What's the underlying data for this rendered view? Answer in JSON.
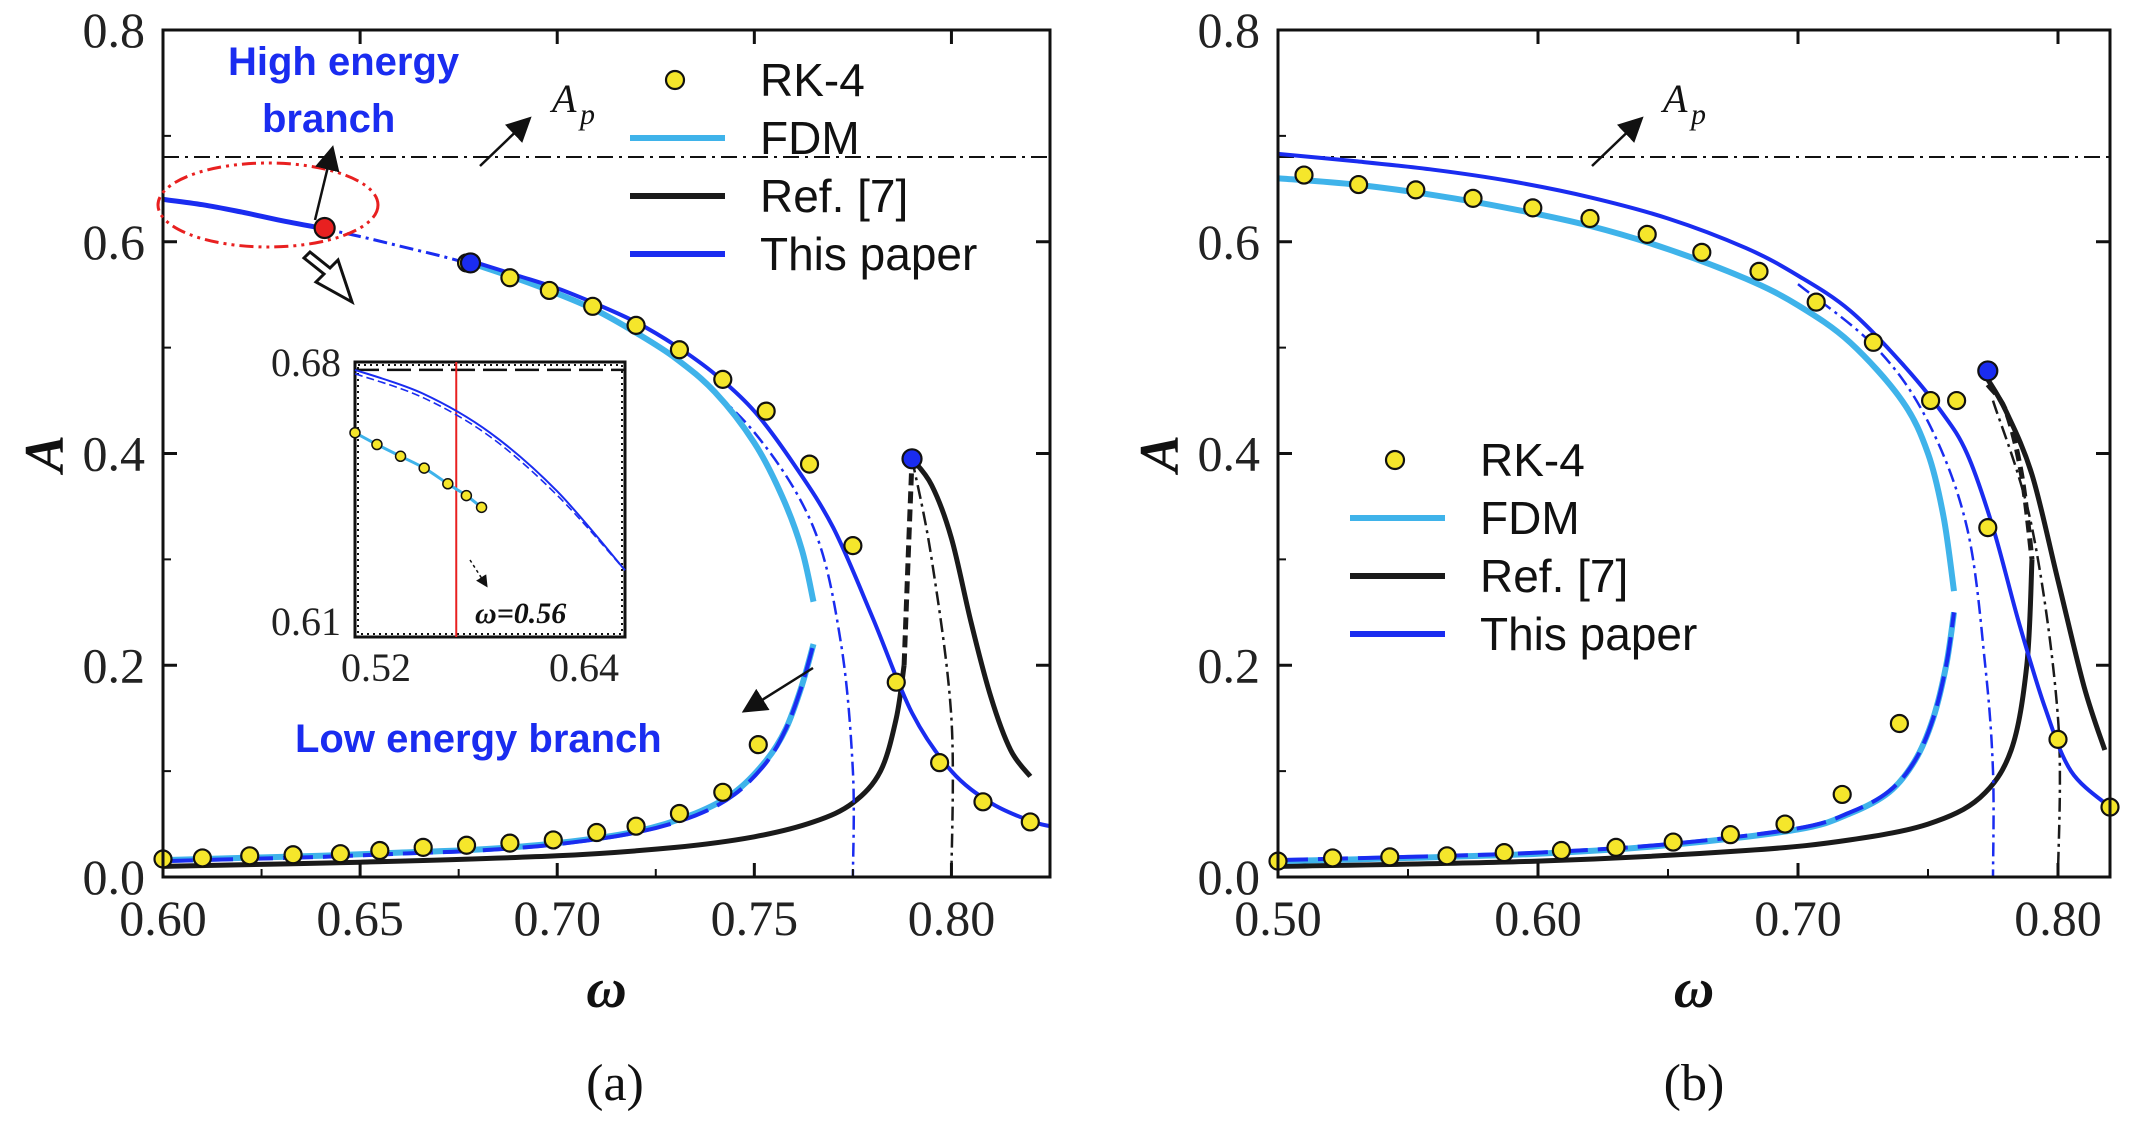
{
  "figure": {
    "captions": [
      "(a)",
      "(b)"
    ]
  },
  "colors": {
    "rk4_fill": "#f5e62b",
    "fdm": "#3fb3ea",
    "ref": "#1a1a1a",
    "this_paper": "#1a2cf0",
    "red_marker": "#e82020",
    "ellipse": "#e82020",
    "inset_vline": "#e82020"
  },
  "legend_labels": [
    "RK-4",
    "FDM",
    "Ref. [7]",
    "This paper"
  ],
  "annotations": {
    "high_energy_line1": "High energy",
    "high_energy_line2": "branch",
    "low_energy": "Low energy branch",
    "ap_main": "A",
    "ap_sub": "p",
    "inset_omega": "ω=0.56"
  },
  "chart_data": [
    {
      "id": "a",
      "type": "line",
      "xlabel": "ω",
      "ylabel": "A",
      "xlim": [
        0.6,
        0.825
      ],
      "ylim": [
        0.0,
        0.8
      ],
      "xticks": [
        0.6,
        0.65,
        0.7,
        0.75,
        0.8
      ],
      "xtick_labels": [
        "0.60",
        "0.65",
        "0.70",
        "0.75",
        "0.80"
      ],
      "yticks": [
        0.0,
        0.2,
        0.4,
        0.6,
        0.8
      ],
      "ytick_labels": [
        "0.0",
        "0.2",
        "0.4",
        "0.6",
        "0.8"
      ],
      "Ap": 0.68,
      "series": [
        {
          "name": "RK-4",
          "type": "scatter",
          "x": [
            0.6,
            0.61,
            0.622,
            0.633,
            0.645,
            0.655,
            0.666,
            0.677,
            0.688,
            0.699,
            0.71,
            0.72,
            0.731,
            0.742,
            0.751,
            0.677,
            0.688,
            0.698,
            0.709,
            0.72,
            0.731,
            0.742,
            0.753,
            0.764,
            0.775,
            0.786,
            0.797,
            0.808,
            0.82
          ],
          "y": [
            0.017,
            0.018,
            0.02,
            0.021,
            0.022,
            0.025,
            0.028,
            0.03,
            0.032,
            0.035,
            0.042,
            0.048,
            0.06,
            0.08,
            0.125,
            0.58,
            0.566,
            0.554,
            0.539,
            0.521,
            0.498,
            0.47,
            0.44,
            0.39,
            0.313,
            0.184,
            0.108,
            0.071,
            0.052
          ]
        },
        {
          "name": "FDM",
          "upper_x": [
            0.678,
            0.69,
            0.7,
            0.71,
            0.72,
            0.73,
            0.74,
            0.75,
            0.757,
            0.762,
            0.765
          ],
          "upper_y": [
            0.58,
            0.565,
            0.551,
            0.535,
            0.514,
            0.49,
            0.458,
            0.41,
            0.36,
            0.31,
            0.26
          ],
          "lower_x": [
            0.6,
            0.62,
            0.64,
            0.66,
            0.68,
            0.7,
            0.72,
            0.735,
            0.745,
            0.753,
            0.758,
            0.762,
            0.765
          ],
          "lower_y": [
            0.016,
            0.018,
            0.02,
            0.023,
            0.026,
            0.032,
            0.043,
            0.06,
            0.08,
            0.11,
            0.14,
            0.18,
            0.22
          ]
        },
        {
          "name": "Ref. [7]",
          "upper_x": [
            0.79,
            0.795,
            0.8,
            0.805,
            0.81,
            0.815,
            0.82
          ],
          "upper_y": [
            0.395,
            0.37,
            0.32,
            0.24,
            0.17,
            0.12,
            0.095
          ],
          "lower_x": [
            0.6,
            0.65,
            0.7,
            0.73,
            0.75,
            0.765,
            0.775,
            0.782,
            0.786,
            0.788
          ],
          "lower_y": [
            0.01,
            0.014,
            0.02,
            0.028,
            0.038,
            0.052,
            0.07,
            0.1,
            0.15,
            0.2
          ],
          "unstable_x": [
            0.788,
            0.789,
            0.79
          ],
          "unstable_y": [
            0.2,
            0.3,
            0.395
          ],
          "backbone_x": [
            0.79,
            0.795,
            0.8,
            0.8
          ],
          "backbone_y": [
            0.395,
            0.3,
            0.15,
            0.0
          ]
        },
        {
          "name": "This paper",
          "high_x": [
            0.6,
            0.61,
            0.62,
            0.63,
            0.64
          ],
          "high_y": [
            0.64,
            0.635,
            0.628,
            0.62,
            0.613
          ],
          "high_dash_x": [
            0.64,
            0.65,
            0.66,
            0.67,
            0.677
          ],
          "high_dash_y": [
            0.613,
            0.605,
            0.596,
            0.587,
            0.58
          ],
          "upper_x": [
            0.678,
            0.69,
            0.7,
            0.71,
            0.72,
            0.73,
            0.74,
            0.75,
            0.76,
            0.77,
            0.78,
            0.79,
            0.8,
            0.81,
            0.82,
            0.825
          ],
          "upper_y": [
            0.582,
            0.568,
            0.556,
            0.541,
            0.524,
            0.502,
            0.475,
            0.44,
            0.39,
            0.33,
            0.245,
            0.155,
            0.1,
            0.07,
            0.053,
            0.048
          ],
          "lower_x": [
            0.6,
            0.62,
            0.64,
            0.66,
            0.68,
            0.7,
            0.72,
            0.735,
            0.745,
            0.753,
            0.758,
            0.762,
            0.765
          ],
          "lower_y": [
            0.015,
            0.017,
            0.019,
            0.022,
            0.025,
            0.031,
            0.042,
            0.058,
            0.078,
            0.108,
            0.14,
            0.18,
            0.22
          ],
          "backbone_x": [
            0.73,
            0.75,
            0.765,
            0.772,
            0.775,
            0.775
          ],
          "backbone_y": [
            0.49,
            0.42,
            0.33,
            0.22,
            0.1,
            0.0
          ],
          "markers": [
            {
              "x": 0.678,
              "y": 0.58
            },
            {
              "x": 0.79,
              "y": 0.395
            }
          ],
          "red_marker": {
            "x": 0.641,
            "y": 0.613
          }
        }
      ],
      "inset": {
        "xlim": [
          0.5,
          0.66
        ],
        "ylim": [
          0.61,
          0.68
        ],
        "xtick_labels": [
          "0.52",
          "0.64"
        ],
        "xticks": [
          0.52,
          0.64
        ],
        "ytick_labels": [
          "0.68",
          "0.61"
        ],
        "yticks": [
          0.68,
          0.61
        ],
        "Ap": 0.678,
        "vline_x": 0.56,
        "rk4_x": [
          0.5,
          0.513,
          0.527,
          0.541,
          0.555,
          0.566,
          0.575
        ],
        "rk4_y": [
          0.662,
          0.659,
          0.656,
          0.653,
          0.649,
          0.646,
          0.643
        ],
        "blue_x": [
          0.5,
          0.54,
          0.58,
          0.62,
          0.66
        ],
        "blue_y": [
          0.678,
          0.672,
          0.662,
          0.647,
          0.627
        ],
        "blue_dash_x": [
          0.5,
          0.54,
          0.58,
          0.62,
          0.66
        ],
        "blue_dash_y": [
          0.677,
          0.671,
          0.661,
          0.646,
          0.627
        ]
      }
    },
    {
      "id": "b",
      "type": "line",
      "xlabel": "ω",
      "ylabel": "A",
      "xlim": [
        0.5,
        0.82
      ],
      "ylim": [
        0.0,
        0.8
      ],
      "xticks": [
        0.5,
        0.6,
        0.7,
        0.8
      ],
      "xtick_labels": [
        "0.50",
        "0.60",
        "0.70",
        "0.80"
      ],
      "yticks": [
        0.0,
        0.2,
        0.4,
        0.6,
        0.8
      ],
      "ytick_labels": [
        "0.0",
        "0.2",
        "0.4",
        "0.6",
        "0.8"
      ],
      "Ap": 0.68,
      "series": [
        {
          "name": "RK-4",
          "type": "scatter",
          "x": [
            0.5,
            0.521,
            0.543,
            0.565,
            0.587,
            0.609,
            0.63,
            0.652,
            0.674,
            0.695,
            0.717,
            0.739,
            0.761,
            0.773,
            0.8,
            0.82,
            0.51,
            0.531,
            0.553,
            0.575,
            0.598,
            0.62,
            0.642,
            0.663,
            0.685,
            0.707,
            0.729,
            0.751
          ],
          "y": [
            0.015,
            0.018,
            0.019,
            0.02,
            0.023,
            0.025,
            0.028,
            0.033,
            0.04,
            0.05,
            0.078,
            0.145,
            0.45,
            0.33,
            0.13,
            0.066,
            0.663,
            0.654,
            0.649,
            0.641,
            0.632,
            0.622,
            0.607,
            0.59,
            0.572,
            0.543,
            0.505,
            0.45
          ]
        },
        {
          "name": "FDM",
          "upper_x": [
            0.5,
            0.53,
            0.56,
            0.59,
            0.62,
            0.65,
            0.68,
            0.7,
            0.72,
            0.74,
            0.75,
            0.756,
            0.76
          ],
          "upper_y": [
            0.66,
            0.654,
            0.644,
            0.631,
            0.615,
            0.593,
            0.565,
            0.54,
            0.505,
            0.45,
            0.4,
            0.34,
            0.27
          ],
          "lower_x": [
            0.5,
            0.55,
            0.6,
            0.65,
            0.7,
            0.72,
            0.735,
            0.745,
            0.752,
            0.757,
            0.76
          ],
          "lower_y": [
            0.015,
            0.018,
            0.022,
            0.03,
            0.045,
            0.06,
            0.08,
            0.11,
            0.15,
            0.2,
            0.25
          ]
        },
        {
          "name": "Ref. [7]",
          "upper_x": [
            0.773,
            0.78,
            0.79,
            0.8,
            0.81,
            0.818
          ],
          "upper_y": [
            0.47,
            0.44,
            0.38,
            0.28,
            0.18,
            0.12
          ],
          "lower_x": [
            0.5,
            0.6,
            0.68,
            0.72,
            0.75,
            0.77,
            0.782,
            0.788,
            0.79
          ],
          "lower_y": [
            0.01,
            0.015,
            0.025,
            0.035,
            0.05,
            0.075,
            0.12,
            0.2,
            0.3
          ],
          "unstable_x": [
            0.773,
            0.78,
            0.786,
            0.79
          ],
          "unstable_y": [
            0.465,
            0.44,
            0.38,
            0.3
          ],
          "backbone_x": [
            0.775,
            0.79,
            0.8,
            0.8
          ],
          "backbone_y": [
            0.45,
            0.33,
            0.15,
            0.0
          ]
        },
        {
          "name": "This paper",
          "upper_x": [
            0.5,
            0.53,
            0.56,
            0.59,
            0.62,
            0.65,
            0.68,
            0.7,
            0.72,
            0.74,
            0.755,
            0.765,
            0.775,
            0.785,
            0.795,
            0.805,
            0.82
          ],
          "upper_y": [
            0.683,
            0.676,
            0.668,
            0.657,
            0.642,
            0.622,
            0.594,
            0.568,
            0.535,
            0.485,
            0.44,
            0.4,
            0.33,
            0.24,
            0.16,
            0.1,
            0.066
          ],
          "lower_x": [
            0.5,
            0.55,
            0.6,
            0.65,
            0.7,
            0.72,
            0.735,
            0.745,
            0.752,
            0.757,
            0.76
          ],
          "lower_y": [
            0.016,
            0.019,
            0.023,
            0.031,
            0.046,
            0.061,
            0.081,
            0.11,
            0.15,
            0.2,
            0.25
          ],
          "backbone_x": [
            0.7,
            0.73,
            0.75,
            0.765,
            0.772,
            0.775,
            0.775
          ],
          "backbone_y": [
            0.56,
            0.5,
            0.43,
            0.33,
            0.2,
            0.1,
            0.0
          ],
          "markers": [
            {
              "x": 0.773,
              "y": 0.478
            }
          ]
        }
      ]
    }
  ]
}
